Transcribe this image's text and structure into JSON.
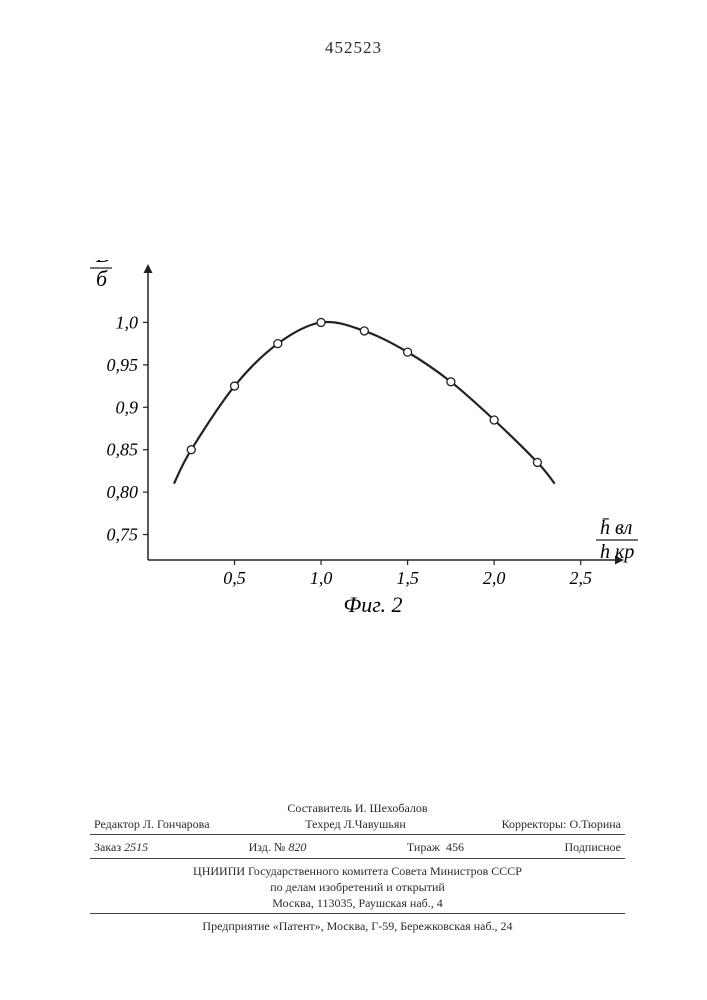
{
  "document_number": "452523",
  "chart": {
    "type": "line-with-markers",
    "y_axis_label_top": "D̄",
    "y_axis_label_bottom": "б",
    "x_axis_label_top": "h̄ вл",
    "x_axis_label_bottom": "h кр",
    "caption": "Фиг. 2",
    "xlim": [
      0,
      2.6
    ],
    "ylim": [
      0.72,
      1.05
    ],
    "x_ticks": [
      0.5,
      1.0,
      1.5,
      2.0,
      2.5
    ],
    "x_tick_labels": [
      "0,5",
      "1,0",
      "1,5",
      "2,0",
      "2,5"
    ],
    "y_ticks": [
      0.75,
      0.8,
      0.85,
      0.9,
      0.95,
      1.0
    ],
    "y_tick_labels": [
      "0,75",
      "0,80",
      "0,85",
      "0,9",
      "0,95",
      "1,0"
    ],
    "points": [
      {
        "x": 0.15,
        "y": 0.81
      },
      {
        "x": 0.25,
        "y": 0.85
      },
      {
        "x": 0.5,
        "y": 0.925
      },
      {
        "x": 0.75,
        "y": 0.975
      },
      {
        "x": 1.0,
        "y": 1.0
      },
      {
        "x": 1.25,
        "y": 0.99
      },
      {
        "x": 1.5,
        "y": 0.965
      },
      {
        "x": 1.75,
        "y": 0.93
      },
      {
        "x": 2.0,
        "y": 0.885
      },
      {
        "x": 2.25,
        "y": 0.835
      },
      {
        "x": 2.35,
        "y": 0.81
      }
    ],
    "line_color": "#222222",
    "line_width": 2.2,
    "marker_fill": "#ffffff",
    "marker_stroke": "#222222",
    "marker_radius": 4,
    "axis_color": "#222222",
    "axis_width": 1.5,
    "background_color": "#ffffff",
    "title_fontsize": 22,
    "tick_fontsize": 18,
    "label_fontsize": 22
  },
  "footer": {
    "compiler": "Составитель И. Шехобалов",
    "editor_label": "Редактор",
    "editor": "Л. Гончарова",
    "techred_label": "Техред",
    "techred": "Л.Чавушьян",
    "corrector_label": "Корректоры:",
    "corrector": "О.Тюрина",
    "order_label": "Заказ",
    "order_value": "2515",
    "izd_label": "Изд. №",
    "izd_value": "820",
    "tirazh_label": "Тираж",
    "tirazh_value": "456",
    "subscribe": "Подписное",
    "org_line_1": "ЦНИИПИ Государственного комитета Совета Министров СССР",
    "org_line_2": "по делам изобретений и открытий",
    "org_line_3": "Москва, 113035, Раушская наб., 4",
    "press": "Предприятие «Патент», Москва, Г-59, Бережковская наб., 24"
  }
}
